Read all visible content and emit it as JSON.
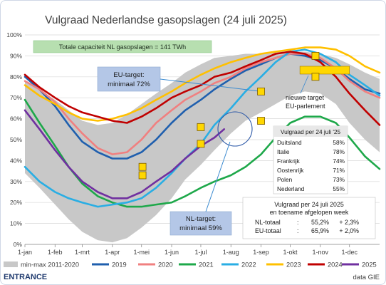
{
  "chart_data": {
    "type": "line",
    "title": "Vulgraad Nederlandse gasopslagen (24 juli 2025)",
    "xlabel": "",
    "ylabel": "",
    "ylim": [
      0,
      100
    ],
    "y_ticks": [
      "0%",
      "10%",
      "20%",
      "30%",
      "40%",
      "50%",
      "60%",
      "70%",
      "80%",
      "90%",
      "100%"
    ],
    "x_ticks": [
      "1-jan",
      "1-feb",
      "1-mrt",
      "1-apr",
      "1-mei",
      "1-jun",
      "1-jul",
      "1-aug",
      "1-sep",
      "1-okt",
      "1-nov",
      "1-dec"
    ],
    "x_tick_days": [
      0,
      31,
      59,
      90,
      120,
      151,
      181,
      212,
      243,
      273,
      304,
      334
    ],
    "grid": true,
    "legend_position": "bottom",
    "band": {
      "name": "min-max 2011-2020",
      "color": "#c8c8c8",
      "x": [
        0,
        15,
        31,
        45,
        59,
        75,
        90,
        105,
        120,
        135,
        151,
        165,
        181,
        195,
        212,
        227,
        243,
        258,
        273,
        288,
        304,
        320,
        334,
        350,
        365
      ],
      "max": [
        78,
        74,
        69,
        64,
        59,
        57,
        58,
        62,
        67,
        72,
        77,
        82,
        86,
        89,
        90,
        91,
        91,
        92,
        92,
        92,
        91,
        89,
        86,
        82,
        79
      ],
      "min": [
        34,
        27,
        19,
        12,
        6,
        2,
        1,
        3,
        8,
        14,
        22,
        31,
        38,
        45,
        53,
        59,
        63,
        67,
        71,
        73,
        72,
        67,
        58,
        50,
        44
      ]
    },
    "series": [
      {
        "name": "2019",
        "color": "#1f5fae",
        "x": [
          0,
          15,
          31,
          45,
          59,
          75,
          90,
          105,
          120,
          135,
          151,
          165,
          181,
          195,
          212,
          227,
          243,
          258,
          273,
          288,
          304,
          320,
          334,
          350,
          365
        ],
        "values": [
          80,
          74,
          66,
          57,
          49,
          44,
          41,
          41,
          44,
          50,
          58,
          64,
          69,
          74,
          79,
          83,
          86,
          89,
          91,
          90,
          88,
          84,
          79,
          74,
          72
        ]
      },
      {
        "name": "2020",
        "color": "#f08080",
        "x": [
          0,
          15,
          31,
          45,
          59,
          75,
          90,
          105,
          120,
          135,
          151,
          165,
          181,
          195,
          212,
          227,
          243,
          258,
          273,
          288,
          304,
          320,
          334,
          350,
          365
        ],
        "values": [
          78,
          74,
          68,
          60,
          53,
          46,
          43,
          44,
          50,
          58,
          64,
          69,
          73,
          77,
          80,
          84,
          87,
          89,
          91,
          91,
          89,
          84,
          78,
          73,
          70
        ]
      },
      {
        "name": "2021",
        "color": "#1ea84a",
        "x": [
          0,
          15,
          31,
          45,
          59,
          75,
          90,
          105,
          120,
          135,
          151,
          165,
          181,
          195,
          212,
          227,
          243,
          258,
          273,
          288,
          304,
          320,
          334,
          350,
          365
        ],
        "values": [
          69,
          58,
          47,
          37,
          29,
          23,
          20,
          18,
          18,
          19,
          20,
          23,
          27,
          30,
          33,
          37,
          43,
          51,
          58,
          61,
          61,
          58,
          51,
          42,
          36
        ]
      },
      {
        "name": "2022",
        "color": "#29aee4",
        "x": [
          0,
          15,
          31,
          45,
          59,
          75,
          90,
          105,
          120,
          135,
          151,
          165,
          181,
          195,
          212,
          227,
          243,
          258,
          273,
          288,
          304,
          320,
          334,
          350,
          365
        ],
        "values": [
          37,
          30,
          25,
          22,
          20,
          18,
          19,
          20,
          22,
          27,
          34,
          41,
          48,
          57,
          65,
          73,
          80,
          87,
          92,
          93,
          91,
          87,
          81,
          76,
          71
        ]
      },
      {
        "name": "2023",
        "color": "#ffc000",
        "x": [
          0,
          15,
          31,
          45,
          59,
          75,
          90,
          105,
          120,
          135,
          151,
          165,
          181,
          195,
          212,
          227,
          243,
          258,
          273,
          288,
          304,
          320,
          334,
          350,
          365
        ],
        "values": [
          76,
          71,
          67,
          63,
          60,
          59,
          60,
          62,
          65,
          69,
          73,
          77,
          81,
          84,
          87,
          89,
          91,
          92,
          93,
          94,
          94,
          93,
          90,
          85,
          82
        ]
      },
      {
        "name": "2024",
        "color": "#c00000",
        "x": [
          0,
          15,
          31,
          45,
          59,
          75,
          90,
          105,
          120,
          135,
          151,
          165,
          181,
          195,
          212,
          227,
          243,
          258,
          273,
          288,
          304,
          320,
          334,
          350,
          365
        ],
        "values": [
          81,
          75,
          70,
          66,
          63,
          61,
          59,
          58,
          61,
          65,
          70,
          73,
          76,
          80,
          82,
          85,
          88,
          91,
          92,
          91,
          87,
          80,
          72,
          64,
          57
        ]
      },
      {
        "name": "2025",
        "color": "#7030a0",
        "x": [
          0,
          15,
          31,
          45,
          59,
          75,
          90,
          105,
          120,
          135,
          151,
          165,
          181,
          195,
          205
        ],
        "values": [
          64,
          55,
          45,
          37,
          30,
          25,
          22,
          22,
          25,
          30,
          35,
          41,
          47,
          51,
          55
        ]
      }
    ],
    "markers": [
      {
        "label": "Duitsland",
        "x": 243,
        "y": 73
      },
      {
        "label": "Italie",
        "x": 299,
        "y": 90
      },
      {
        "label": "Frankrijk",
        "x": 299,
        "y": 80
      },
      {
        "label": "Oostenrijk",
        "x": 121,
        "y": 37
      },
      {
        "label": "Polen",
        "x": 181,
        "y": 56
      },
      {
        "label": "Nederland",
        "x": 243,
        "y": 59
      },
      {
        "label": "",
        "x": 121,
        "y": 33
      },
      {
        "label": "",
        "x": 181,
        "y": 48
      }
    ],
    "marker_color": "#ffd700",
    "new_target_bar": {
      "x_from": 283,
      "x_to": 334,
      "y": 83
    },
    "capacity_label": "Totale capaciteit NL gasopslagen = 141 TWh",
    "eu_target_label": [
      "EU-target:",
      "minimaal 72%"
    ],
    "nl_target_label": [
      "NL-target:",
      "minimaal 59%"
    ],
    "new_target_label": [
      "nieuwe target",
      "EU-parlement"
    ],
    "table": {
      "title": "Vulgraad per 24 juli '25",
      "rows": [
        [
          "Duitsland",
          "58%"
        ],
        [
          "Italie",
          "78%"
        ],
        [
          "Frankrijk",
          "74%"
        ],
        [
          "Oostenrijk",
          "71%"
        ],
        [
          "Polen",
          "73%"
        ],
        [
          "Nederland",
          "55%"
        ]
      ]
    },
    "summary": {
      "title": [
        "Vulgraad per 24 juli 2025",
        "en toename afgelopen week"
      ],
      "rows": [
        [
          "NL-totaal",
          ":",
          "55,2%",
          "+ 2,3%"
        ],
        [
          "EU-totaal",
          ":",
          "65,9%",
          "+ 2,0%"
        ]
      ]
    },
    "legend": [
      "min-max 2011-2020",
      "2019",
      "2020",
      "2021",
      "2022",
      "2023",
      "2024",
      "2025"
    ]
  },
  "footer": {
    "logo": "ENTRANCE",
    "logo_sub": "centre of expertise energy",
    "source": "data GIE"
  }
}
